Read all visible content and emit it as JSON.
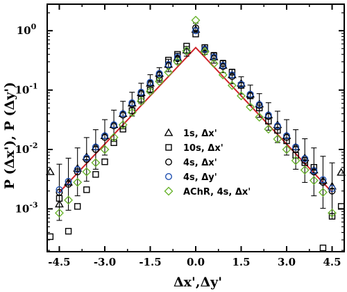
{
  "chart_data": {
    "type": "scatter",
    "xlabel": "Δx',Δy'",
    "ylabel": "P (Δx'), P (Δy')",
    "xlim": [
      -4.9,
      4.9
    ],
    "ylim": [
      0.00019,
      2.8
    ],
    "yscale": "log",
    "xticks": [
      {
        "value": -4.5,
        "label": "-4.5"
      },
      {
        "value": -3.0,
        "label": "-3.0"
      },
      {
        "value": -1.5,
        "label": "-1.5"
      },
      {
        "value": 0.0,
        "label": "0.0"
      },
      {
        "value": 1.5,
        "label": "1.5"
      },
      {
        "value": 3.0,
        "label": "3.0"
      },
      {
        "value": 4.5,
        "label": "4.5"
      }
    ],
    "yticks": [
      {
        "value": 0.001,
        "base": "10",
        "exp": "-3"
      },
      {
        "value": 0.01,
        "base": "10",
        "exp": "-2"
      },
      {
        "value": 0.1,
        "base": "10",
        "exp": "-1"
      },
      {
        "value": 1,
        "base": "10",
        "exp": "0"
      }
    ],
    "legend_position": "center-right",
    "fit_line": {
      "color": "#d0232a",
      "points": [
        [
          -4.5,
          0.0019
        ],
        [
          0.0,
          0.52
        ],
        [
          4.5,
          0.0019
        ]
      ]
    },
    "series": [
      {
        "name": "1s, Δx'",
        "marker": "triangle",
        "color": "#000000",
        "points": [
          [
            -4.8,
            0.0042
          ],
          [
            -4.5,
            0.0012
          ],
          [
            -4.2,
            0.0028
          ],
          [
            -3.9,
            0.0048
          ],
          [
            -3.6,
            0.0075
          ],
          [
            -3.3,
            0.011
          ],
          [
            -3.0,
            0.017
          ],
          [
            -2.7,
            0.026
          ],
          [
            -2.4,
            0.04
          ],
          [
            -2.1,
            0.06
          ],
          [
            -1.8,
            0.09
          ],
          [
            -1.5,
            0.13
          ],
          [
            -1.2,
            0.19
          ],
          [
            -0.9,
            0.27
          ],
          [
            -0.6,
            0.35
          ],
          [
            -0.3,
            0.47
          ],
          [
            0.0,
            1.05
          ],
          [
            0.3,
            0.5
          ],
          [
            0.6,
            0.36
          ],
          [
            0.9,
            0.26
          ],
          [
            1.2,
            0.18
          ],
          [
            1.5,
            0.13
          ],
          [
            1.8,
            0.085
          ],
          [
            2.1,
            0.058
          ],
          [
            2.4,
            0.038
          ],
          [
            2.7,
            0.026
          ],
          [
            3.0,
            0.017
          ],
          [
            3.3,
            0.011
          ],
          [
            3.6,
            0.0072
          ],
          [
            3.9,
            0.0045
          ],
          [
            4.2,
            0.003
          ],
          [
            4.5,
            0.0024
          ],
          [
            4.8,
            0.0041
          ]
        ]
      },
      {
        "name": "10s, Δx'",
        "marker": "square",
        "color": "#000000",
        "points": [
          [
            -4.8,
            0.00034
          ],
          [
            -4.5,
            0.0015
          ],
          [
            -4.2,
            0.00042
          ],
          [
            -3.9,
            0.0011
          ],
          [
            -3.6,
            0.0021
          ],
          [
            -3.3,
            0.0038
          ],
          [
            -3.0,
            0.0062
          ],
          [
            -2.7,
            0.013
          ],
          [
            -2.4,
            0.022
          ],
          [
            -2.1,
            0.045
          ],
          [
            -1.8,
            0.07
          ],
          [
            -1.5,
            0.1
          ],
          [
            -1.2,
            0.16
          ],
          [
            -0.9,
            0.32
          ],
          [
            -0.6,
            0.4
          ],
          [
            -0.3,
            0.55
          ],
          [
            0.0,
            0.88
          ],
          [
            0.3,
            0.52
          ],
          [
            0.6,
            0.38
          ],
          [
            0.9,
            0.28
          ],
          [
            1.2,
            0.2
          ],
          [
            1.5,
            0.12
          ],
          [
            1.8,
            0.08
          ],
          [
            2.1,
            0.05
          ],
          [
            2.4,
            0.03
          ],
          [
            2.7,
            0.021
          ],
          [
            3.0,
            0.014
          ],
          [
            3.3,
            0.008
          ],
          [
            3.6,
            0.006
          ],
          [
            3.9,
            0.005
          ],
          [
            4.2,
            0.00022
          ],
          [
            4.5,
            0.00075
          ],
          [
            4.8,
            0.0011
          ]
        ]
      },
      {
        "name": "4s, Δx'",
        "marker": "circle",
        "color": "#000000",
        "points": [
          [
            -4.5,
            0.0019
          ],
          [
            -4.2,
            0.0026
          ],
          [
            -3.9,
            0.0042
          ],
          [
            -3.6,
            0.0068
          ],
          [
            -3.3,
            0.01
          ],
          [
            -3.0,
            0.016
          ],
          [
            -2.7,
            0.025
          ],
          [
            -2.4,
            0.038
          ],
          [
            -2.1,
            0.058
          ],
          [
            -1.8,
            0.088
          ],
          [
            -1.5,
            0.13
          ],
          [
            -1.2,
            0.18
          ],
          [
            -0.9,
            0.26
          ],
          [
            -0.6,
            0.34
          ],
          [
            -0.3,
            0.45
          ],
          [
            0.0,
            1.12
          ],
          [
            0.3,
            0.48
          ],
          [
            0.6,
            0.35
          ],
          [
            0.9,
            0.25
          ],
          [
            1.2,
            0.17
          ],
          [
            1.5,
            0.12
          ],
          [
            1.8,
            0.082
          ],
          [
            2.1,
            0.055
          ],
          [
            2.4,
            0.036
          ],
          [
            2.7,
            0.024
          ],
          [
            3.0,
            0.016
          ],
          [
            3.3,
            0.01
          ],
          [
            3.6,
            0.0065
          ],
          [
            3.9,
            0.0042
          ],
          [
            4.2,
            0.0028
          ],
          [
            4.5,
            0.002
          ]
        ]
      },
      {
        "name": "4s, Δy'",
        "marker": "circle",
        "color": "#2050b0",
        "points": [
          [
            -4.5,
            0.0021
          ],
          [
            -4.2,
            0.0029
          ],
          [
            -3.9,
            0.0046
          ],
          [
            -3.6,
            0.0072
          ],
          [
            -3.3,
            0.011
          ],
          [
            -3.0,
            0.017
          ],
          [
            -2.7,
            0.026
          ],
          [
            -2.4,
            0.04
          ],
          [
            -2.1,
            0.061
          ],
          [
            -1.8,
            0.092
          ],
          [
            -1.5,
            0.135
          ],
          [
            -1.2,
            0.19
          ],
          [
            -0.9,
            0.27
          ],
          [
            -0.6,
            0.36
          ],
          [
            -0.3,
            0.46
          ],
          [
            0.0,
            1.0
          ],
          [
            0.3,
            0.49
          ],
          [
            0.6,
            0.36
          ],
          [
            0.9,
            0.26
          ],
          [
            1.2,
            0.18
          ],
          [
            1.5,
            0.125
          ],
          [
            1.8,
            0.085
          ],
          [
            2.1,
            0.057
          ],
          [
            2.4,
            0.038
          ],
          [
            2.7,
            0.025
          ],
          [
            3.0,
            0.017
          ],
          [
            3.3,
            0.011
          ],
          [
            3.6,
            0.007
          ],
          [
            3.9,
            0.0044
          ],
          [
            4.2,
            0.0031
          ],
          [
            4.5,
            0.0022
          ]
        ]
      },
      {
        "name": "AChR, 4s, Δx'",
        "marker": "diamond",
        "color": "#6ab42e",
        "points": [
          [
            -4.5,
            0.00085
          ],
          [
            -4.2,
            0.0014
          ],
          [
            -3.9,
            0.0028
          ],
          [
            -3.6,
            0.0042
          ],
          [
            -3.3,
            0.006
          ],
          [
            -3.0,
            0.01
          ],
          [
            -2.7,
            0.016
          ],
          [
            -2.4,
            0.026
          ],
          [
            -2.1,
            0.042
          ],
          [
            -1.8,
            0.065
          ],
          [
            -1.5,
            0.095
          ],
          [
            -1.2,
            0.14
          ],
          [
            -0.9,
            0.2
          ],
          [
            -0.6,
            0.3
          ],
          [
            -0.3,
            0.46
          ],
          [
            0.0,
            1.5
          ],
          [
            0.3,
            0.44
          ],
          [
            0.6,
            0.28
          ],
          [
            0.9,
            0.18
          ],
          [
            1.2,
            0.12
          ],
          [
            1.5,
            0.08
          ],
          [
            1.8,
            0.052
          ],
          [
            2.1,
            0.035
          ],
          [
            2.4,
            0.022
          ],
          [
            2.7,
            0.015
          ],
          [
            3.0,
            0.01
          ],
          [
            3.3,
            0.0065
          ],
          [
            3.6,
            0.0045
          ],
          [
            3.9,
            0.003
          ],
          [
            4.2,
            0.0019
          ],
          [
            4.5,
            0.00085
          ]
        ]
      }
    ]
  }
}
